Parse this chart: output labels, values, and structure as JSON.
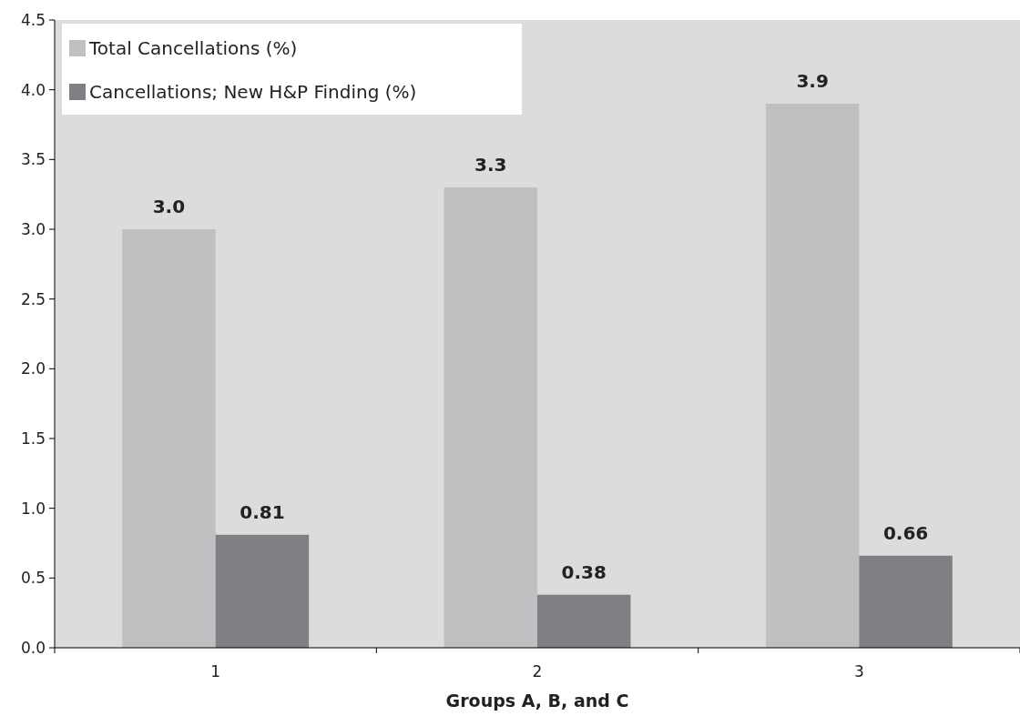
{
  "chart_data": {
    "type": "bar",
    "xlabel": "Groups A, B, and C",
    "categories": [
      "1",
      "2",
      "3"
    ],
    "series": [
      {
        "name": "Total Cancellations (%)",
        "color": "#c0c0c2",
        "values": [
          3.0,
          3.3,
          3.9
        ],
        "value_labels": [
          "3.0",
          "3.3",
          "3.9"
        ]
      },
      {
        "name": "Cancellations; New H&P Finding (%)",
        "color": "#808084",
        "values": [
          0.81,
          0.38,
          0.66
        ],
        "value_labels": [
          "0.81",
          "0.38",
          "0.66"
        ]
      }
    ],
    "ylim": [
      0,
      4.5
    ],
    "yticks": [
      {
        "value": 0,
        "label": "0.0"
      },
      {
        "value": 0.5,
        "label": "0.5"
      },
      {
        "value": 1,
        "label": "1.0"
      },
      {
        "value": 1.5,
        "label": "1.5"
      },
      {
        "value": 2,
        "label": "2.0"
      },
      {
        "value": 2.5,
        "label": "2.5"
      },
      {
        "value": 3,
        "label": "3.0"
      },
      {
        "value": 3.5,
        "label": "3.5"
      },
      {
        "value": 4,
        "label": "4.0"
      },
      {
        "value": 4.5,
        "label": "4.5"
      }
    ],
    "grid": false,
    "legend": "top left"
  }
}
